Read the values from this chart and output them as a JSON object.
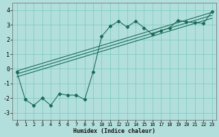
{
  "title": "",
  "xlabel": "Humidex (Indice chaleur)",
  "ylabel": "",
  "background_color": "#b2dfdb",
  "grid_color": "#80cbc4",
  "line_color": "#1a6b5a",
  "xlim": [
    -0.5,
    23.5
  ],
  "ylim": [
    -3.5,
    4.5
  ],
  "yticks": [
    -3,
    -2,
    -1,
    0,
    1,
    2,
    3,
    4
  ],
  "xticks": [
    0,
    1,
    2,
    3,
    4,
    5,
    6,
    7,
    8,
    9,
    10,
    11,
    12,
    13,
    14,
    15,
    16,
    17,
    18,
    19,
    20,
    21,
    22,
    23
  ],
  "main_series": {
    "x": [
      0,
      1,
      2,
      3,
      4,
      5,
      6,
      7,
      8,
      9,
      10,
      11,
      12,
      13,
      14,
      15,
      16,
      17,
      18,
      19,
      20,
      21,
      22,
      23
    ],
    "y": [
      -0.2,
      -2.1,
      -2.5,
      -2.0,
      -2.5,
      -1.7,
      -1.8,
      -1.8,
      -2.1,
      -0.2,
      2.2,
      2.9,
      3.25,
      2.85,
      3.25,
      2.8,
      2.35,
      2.6,
      2.8,
      3.3,
      3.2,
      3.15,
      3.1,
      3.9
    ]
  },
  "linear_lines": [
    {
      "x0": 0,
      "y0": -0.55,
      "x1": 23,
      "y1": 3.45
    },
    {
      "x0": 0,
      "y0": -0.35,
      "x1": 23,
      "y1": 3.65
    },
    {
      "x0": 0,
      "y0": -0.15,
      "x1": 23,
      "y1": 3.85
    }
  ]
}
